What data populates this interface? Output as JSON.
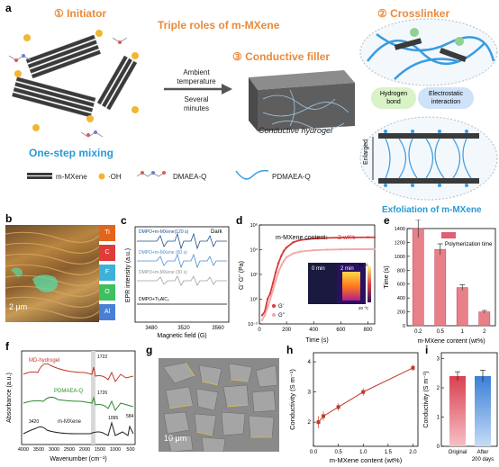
{
  "panels": {
    "a": "a",
    "b": "b",
    "c": "c",
    "d": "d",
    "e": "e",
    "f": "f",
    "g": "g",
    "h": "h",
    "i": "i"
  },
  "panel_a": {
    "initiator": "① Initiator",
    "title": "Triple roles of m-MXene",
    "crosslinker": "② Crosslinker",
    "conductive_filler": "③ Conductive filler",
    "ambient": "Ambient",
    "temperature": "temperature",
    "several": "Several",
    "minutes": "minutes",
    "one_step": "One-step mixing",
    "conductive_hydrogel": "Conductive hydrogel",
    "hydrogen": "Hydrogen",
    "bond": "bond",
    "electrostatic": "Electrostatic",
    "interaction": "interaction",
    "enlarged": "Enlarged",
    "exfoliation": "Exfoliation of m-MXene",
    "legend": [
      "m-MXene",
      "·OH",
      "DMAEA-Q",
      "PDMAEA-Q"
    ]
  },
  "panel_b": {
    "scale": "2 μm",
    "elements": [
      "Ti",
      "C",
      "F",
      "O",
      "Al"
    ],
    "element_colors": [
      "#e3651c",
      "#e03b3b",
      "#3fb0d8",
      "#3fbf5f",
      "#4a7fd6"
    ]
  },
  "panel_c": {
    "ylabel": "EPR intensity (a.u.)",
    "xlabel": "Magnetic field (G)",
    "dark": "Dark",
    "ticks": [
      "3480",
      "3520",
      "3560"
    ],
    "traces": [
      "DMPO+m-MXene(120 s)",
      "DMPO+m-MXene (60 s)",
      "DMPO+m-MXene (30 s)",
      "DMPO+Ti₃AlC₂"
    ]
  },
  "chart_d": {
    "type": "line",
    "content_label": "m-MXene content: ",
    "content_value": "2 wt%",
    "xlabel": "Time (s)",
    "ylabel": "G' G'' (Pa)",
    "xticks": [
      "0",
      "200",
      "400",
      "600",
      "800"
    ],
    "yticks": [
      "10⁻²",
      "10⁰",
      "10²",
      "10⁴",
      "10⁶"
    ],
    "xlim": [
      0,
      850
    ],
    "ylog": [
      -2,
      6
    ],
    "legend": [
      "G'",
      "G''"
    ],
    "inset_labels": [
      "0 min",
      "2 min"
    ],
    "inset_scale": [
      "40 °C",
      "20 °C"
    ],
    "series": [
      {
        "name": "G'",
        "color": "#d93a3a",
        "x": [
          20,
          40,
          60,
          80,
          100,
          120,
          140,
          160,
          180,
          200,
          250,
          300,
          400,
          500,
          600,
          700,
          800,
          850
        ],
        "y": [
          0.05,
          0.1,
          1,
          3,
          20,
          150,
          800,
          3000,
          8000,
          15000,
          40000,
          60000,
          80000,
          90000,
          95000,
          98000,
          100000,
          100000
        ]
      },
      {
        "name": "G''",
        "color": "#f4a6a6",
        "x": [
          20,
          40,
          60,
          80,
          100,
          120,
          140,
          160,
          180,
          200,
          250,
          300,
          400,
          500,
          600,
          700,
          800,
          850
        ],
        "y": [
          0.02,
          0.05,
          0.2,
          1,
          5,
          30,
          150,
          500,
          1200,
          2500,
          5000,
          7000,
          9000,
          10000,
          10500,
          11000,
          11000,
          11000
        ]
      }
    ]
  },
  "chart_e": {
    "type": "bar",
    "categories": [
      "0.2",
      "0.5",
      "1",
      "2"
    ],
    "values": [
      1400,
      1100,
      550,
      200
    ],
    "errors": [
      130,
      80,
      40,
      20
    ],
    "xlabel": "m-MXene content (wt%)",
    "ylabel": "Time (s)",
    "legend": "Polymerization time",
    "ylim": [
      0,
      1400
    ],
    "yticks": [
      "0",
      "200",
      "400",
      "600",
      "800",
      "1000",
      "1200",
      "1400"
    ]
  },
  "panel_f": {
    "xlabel": "Wavenumber (cm⁻¹)",
    "ylabel": "Absorbance (a.u.)",
    "xticks": [
      "4000",
      "3500",
      "3000",
      "2500",
      "2000",
      "1500",
      "1000",
      "500"
    ],
    "traces": [
      "MD-hydrogel",
      "PDMAEA-Q",
      "m-MXene"
    ],
    "trace_colors": [
      "#c0392b",
      "#2e8b2e",
      "#222222"
    ],
    "annotations": [
      "1722",
      "1726",
      "3420",
      "1095",
      "584"
    ]
  },
  "panel_g": {
    "scale": "10 μm"
  },
  "chart_h": {
    "type": "line",
    "x": [
      0.1,
      0.2,
      0.5,
      1.0,
      2.0
    ],
    "y": [
      2.0,
      2.2,
      2.5,
      3.0,
      3.8
    ],
    "err": [
      0.2,
      0.15,
      0.12,
      0.12,
      0.1
    ],
    "xlabel": "m-MXene content (wt%)",
    "ylabel": "Conductivity (S m⁻¹)",
    "xticks": [
      "0.0",
      "0.5",
      "1.0",
      "1.5",
      "2.0"
    ],
    "yticks": [
      "2",
      "3",
      "4"
    ],
    "xlim": [
      0,
      2.1
    ],
    "ylim": [
      1.2,
      4.3
    ]
  },
  "chart_i": {
    "type": "bar",
    "categories": [
      "Original",
      "After\n200 days"
    ],
    "labels": [
      "Original",
      "After",
      "200 days"
    ],
    "values": [
      2.4,
      2.4
    ],
    "errors": [
      0.15,
      0.2
    ],
    "ylabel": "Conductivity (S m⁻¹)",
    "yticks": [
      "0",
      "1",
      "2",
      "3"
    ],
    "ylim": [
      0,
      3.2
    ]
  }
}
